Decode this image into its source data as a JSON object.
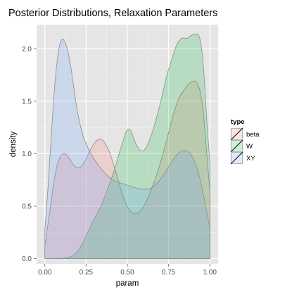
{
  "chart_data": {
    "type": "area",
    "title": "Posterior Distributions, Relaxation Parameters",
    "xlabel": "param",
    "ylabel": "density",
    "xlim": [
      -0.05,
      1.05
    ],
    "ylim": [
      -0.05,
      2.23
    ],
    "x_ticks": [
      0.0,
      0.25,
      0.5,
      0.75,
      1.0
    ],
    "x_tick_labels": [
      "0.00",
      "0.25",
      "0.50",
      "0.75",
      "1.00"
    ],
    "y_ticks": [
      0.0,
      0.5,
      1.0,
      1.5,
      2.0
    ],
    "y_tick_labels": [
      "0.0",
      "0.5",
      "1.0",
      "1.5",
      "2.0"
    ],
    "grid": true,
    "legend": {
      "title": "type",
      "position": "right"
    },
    "colors": {
      "panel": "#e5e5e5",
      "grid": "#ffffff",
      "outline": "#8c8c8c"
    },
    "series": [
      {
        "name": "beta",
        "color": "#f8766d",
        "points": [
          [
            0.0,
            0.12
          ],
          [
            0.03,
            0.45
          ],
          [
            0.06,
            0.78
          ],
          [
            0.09,
            0.96
          ],
          [
            0.12,
            1.0
          ],
          [
            0.15,
            0.95
          ],
          [
            0.18,
            0.88
          ],
          [
            0.21,
            0.87
          ],
          [
            0.24,
            0.92
          ],
          [
            0.27,
            1.02
          ],
          [
            0.3,
            1.1
          ],
          [
            0.33,
            1.14
          ],
          [
            0.36,
            1.11
          ],
          [
            0.39,
            1.02
          ],
          [
            0.42,
            0.88
          ],
          [
            0.45,
            0.72
          ],
          [
            0.48,
            0.57
          ],
          [
            0.51,
            0.47
          ],
          [
            0.54,
            0.43
          ],
          [
            0.57,
            0.44
          ],
          [
            0.6,
            0.5
          ],
          [
            0.63,
            0.6
          ],
          [
            0.66,
            0.72
          ],
          [
            0.69,
            0.86
          ],
          [
            0.72,
            1.02
          ],
          [
            0.75,
            1.2
          ],
          [
            0.78,
            1.38
          ],
          [
            0.81,
            1.52
          ],
          [
            0.84,
            1.6
          ],
          [
            0.87,
            1.66
          ],
          [
            0.9,
            1.69
          ],
          [
            0.92,
            1.68
          ],
          [
            0.94,
            1.6
          ],
          [
            0.96,
            1.4
          ],
          [
            0.98,
            1.02
          ],
          [
            1.0,
            0.65
          ]
        ]
      },
      {
        "name": "W",
        "color": "#00ba38",
        "points": [
          [
            0.0,
            0.0
          ],
          [
            0.08,
            0.0
          ],
          [
            0.14,
            0.01
          ],
          [
            0.18,
            0.04
          ],
          [
            0.22,
            0.12
          ],
          [
            0.26,
            0.25
          ],
          [
            0.3,
            0.38
          ],
          [
            0.34,
            0.5
          ],
          [
            0.38,
            0.66
          ],
          [
            0.42,
            0.84
          ],
          [
            0.45,
            1.0
          ],
          [
            0.48,
            1.15
          ],
          [
            0.5,
            1.23
          ],
          [
            0.52,
            1.22
          ],
          [
            0.54,
            1.14
          ],
          [
            0.56,
            1.07
          ],
          [
            0.58,
            1.03
          ],
          [
            0.6,
            1.03
          ],
          [
            0.62,
            1.08
          ],
          [
            0.65,
            1.2
          ],
          [
            0.68,
            1.36
          ],
          [
            0.71,
            1.55
          ],
          [
            0.74,
            1.75
          ],
          [
            0.77,
            1.9
          ],
          [
            0.8,
            2.04
          ],
          [
            0.83,
            2.1
          ],
          [
            0.86,
            2.1
          ],
          [
            0.89,
            2.13
          ],
          [
            0.92,
            2.14
          ],
          [
            0.94,
            2.09
          ],
          [
            0.96,
            1.85
          ],
          [
            0.98,
            1.35
          ],
          [
            1.0,
            0.92
          ]
        ]
      },
      {
        "name": "XY",
        "color": "#619cff",
        "points": [
          [
            0.0,
            0.28
          ],
          [
            0.02,
            0.7
          ],
          [
            0.04,
            1.2
          ],
          [
            0.06,
            1.65
          ],
          [
            0.08,
            1.95
          ],
          [
            0.1,
            2.08
          ],
          [
            0.12,
            2.07
          ],
          [
            0.14,
            1.97
          ],
          [
            0.16,
            1.8
          ],
          [
            0.18,
            1.58
          ],
          [
            0.2,
            1.38
          ],
          [
            0.23,
            1.18
          ],
          [
            0.26,
            1.06
          ],
          [
            0.29,
            0.97
          ],
          [
            0.32,
            0.9
          ],
          [
            0.35,
            0.84
          ],
          [
            0.38,
            0.79
          ],
          [
            0.41,
            0.75
          ],
          [
            0.44,
            0.73
          ],
          [
            0.48,
            0.71
          ],
          [
            0.52,
            0.69
          ],
          [
            0.56,
            0.67
          ],
          [
            0.6,
            0.66
          ],
          [
            0.64,
            0.67
          ],
          [
            0.68,
            0.72
          ],
          [
            0.72,
            0.8
          ],
          [
            0.76,
            0.9
          ],
          [
            0.8,
            0.99
          ],
          [
            0.84,
            1.03
          ],
          [
            0.87,
            1.02
          ],
          [
            0.9,
            0.95
          ],
          [
            0.93,
            0.82
          ],
          [
            0.96,
            0.62
          ],
          [
            0.98,
            0.45
          ],
          [
            1.0,
            0.3
          ]
        ]
      }
    ]
  }
}
